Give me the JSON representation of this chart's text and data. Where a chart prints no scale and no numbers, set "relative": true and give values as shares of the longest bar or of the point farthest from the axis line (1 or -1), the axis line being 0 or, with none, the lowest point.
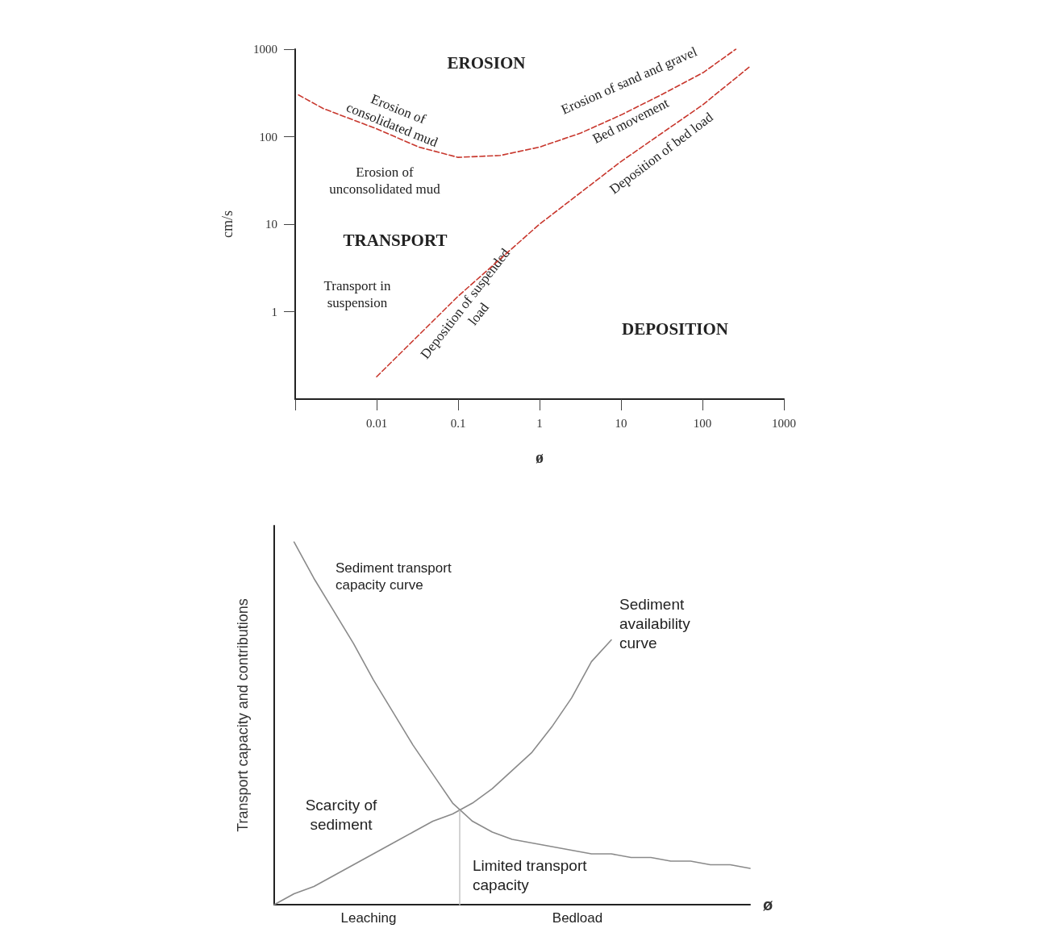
{
  "chart_data": [
    {
      "type": "line",
      "xlabel": "ø",
      "ylabel": "cm/s",
      "log": "xy",
      "xlim": [
        0.001,
        1000
      ],
      "ylim": [
        0.1,
        1000
      ],
      "xticks": [
        {
          "value": 0.001,
          "label": null
        },
        0.01,
        0.1,
        1,
        10,
        100,
        1000
      ],
      "yticks": [
        1,
        10,
        100,
        1000
      ],
      "marker": "none",
      "line_style": "dashed",
      "series": [
        {
          "color": "#c8372d",
          "x": [
            0.0011,
            0.0022,
            0.01,
            0.033,
            0.1,
            0.33,
            1,
            3.2,
            10,
            31,
            102,
            257
          ],
          "values": [
            300,
            210,
            123,
            76,
            58,
            61,
            76,
            110,
            177,
            300,
            540,
            1000
          ]
        },
        {
          "color": "#c8372d",
          "x": [
            0.01,
            0.1,
            1,
            10,
            100,
            380
          ],
          "values": [
            0.18,
            1.5,
            10,
            52,
            230,
            630
          ]
        }
      ],
      "annotations": [
        "EROSION",
        "Erosion of consolidated mud",
        "Erosion of sand and gravel",
        "Bed movement",
        "Deposition of bed load",
        "Erosion of unconsolidated mud",
        "TRANSPORT",
        "Transport in suspension",
        "Deposition of suspended load",
        "DEPOSITION"
      ]
    },
    {
      "type": "line",
      "relative": true,
      "xlabel": "ø",
      "ylabel": "Transport capacity and contributions",
      "marker": "none",
      "line_style": "solid",
      "categories": [
        null,
        null,
        null,
        null,
        null,
        null,
        null,
        null,
        null,
        null,
        null,
        null,
        null,
        null,
        null,
        null,
        null,
        null,
        null,
        null,
        null,
        null,
        null,
        null,
        null
      ],
      "series": [
        {
          "color": "#8a8a8a",
          "values": [
            null,
            1,
            0.9,
            0.81,
            0.72,
            0.62,
            0.53,
            0.44,
            0.36,
            0.28,
            0.23,
            0.2,
            0.18,
            0.17,
            0.16,
            0.15,
            0.14,
            0.14,
            0.13,
            0.13,
            0.12,
            0.12,
            0.11,
            0.11,
            0.1
          ]
        },
        {
          "color": "#8a8a8a",
          "values": [
            0,
            0.03,
            0.05,
            0.08,
            0.11,
            0.14,
            0.17,
            0.2,
            0.23,
            0.25,
            0.28,
            0.32,
            0.37,
            0.42,
            0.49,
            0.57,
            0.67,
            0.73,
            null,
            null,
            null,
            null,
            null,
            null,
            null
          ]
        }
      ],
      "annotations": [
        "Sediment transport capacity curve",
        "Sediment availability curve",
        "Scarcity of sediment",
        "Limited transport capacity",
        "Leaching",
        "Bedload"
      ]
    }
  ]
}
